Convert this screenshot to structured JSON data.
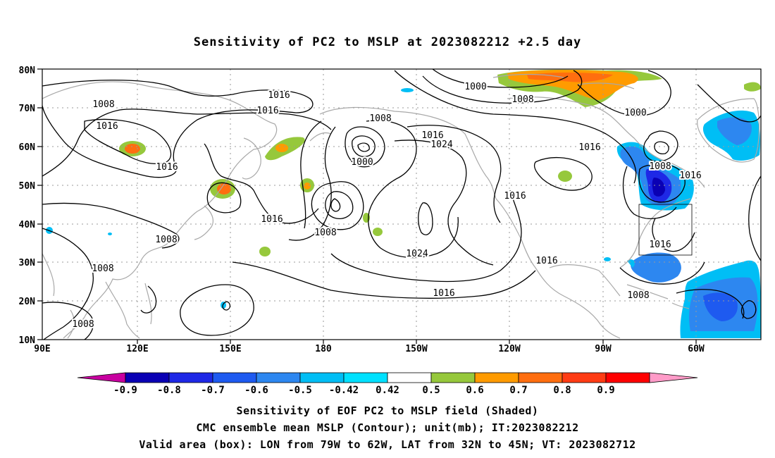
{
  "title": "Sensitivity of PC2 to MSLP at 2023082212 +2.5 day",
  "map": {
    "lat_labels": [
      "80N",
      "70N",
      "60N",
      "50N",
      "40N",
      "30N",
      "20N",
      "10N"
    ],
    "lon_labels": [
      "90E",
      "120E",
      "150E",
      "180",
      "150W",
      "120W",
      "90W",
      "60W"
    ],
    "contour_labels": [
      {
        "text": "1016"
      },
      {
        "text": "1016"
      },
      {
        "text": "1008"
      },
      {
        "text": "1016"
      },
      {
        "text": "1016"
      },
      {
        "text": "1008"
      },
      {
        "text": "1000"
      },
      {
        "text": "1016"
      },
      {
        "text": "1024"
      },
      {
        "text": "1016"
      },
      {
        "text": "1008"
      },
      {
        "text": "1024"
      },
      {
        "text": "1016"
      },
      {
        "text": "1008"
      },
      {
        "text": "1008"
      },
      {
        "text": "1008"
      },
      {
        "text": "1016"
      },
      {
        "text": "1000"
      },
      {
        "text": "1008"
      },
      {
        "text": "1000"
      },
      {
        "text": "1016"
      },
      {
        "text": "1008"
      },
      {
        "text": "1016"
      },
      {
        "text": "1016"
      },
      {
        "text": "1016"
      },
      {
        "text": "1008"
      },
      {
        "text": "1008"
      }
    ],
    "valid_box": {
      "lon_from": "79W",
      "lon_to": "62W",
      "lat_from": "32N",
      "lat_to": "45N"
    }
  },
  "colorbar": {
    "labels": [
      "-0.9",
      "-0.8",
      "-0.7",
      "-0.6",
      "-0.5",
      "-0.42",
      "0.42",
      "0.5",
      "0.6",
      "0.7",
      "0.8",
      "0.9"
    ],
    "colors": [
      "#c800a0",
      "#0a00b4",
      "#1e28e6",
      "#1e5af0",
      "#2d87f0",
      "#00bef5",
      "#00e1ff",
      "#ffffff",
      "#96c83c",
      "#ff9b00",
      "#ff6e0f",
      "#ff3c14",
      "#ff0000",
      "#ff9bc8"
    ]
  },
  "captions": {
    "line1": "Sensitivity of EOF PC2 to MSLP field (Shaded)",
    "line2": "CMC ensemble mean MSLP (Contour); unit(mb); IT:2023082212",
    "line3": "Valid area (box): LON from 79W to 62W, LAT from 32N to 45N; VT: 2023082712"
  }
}
